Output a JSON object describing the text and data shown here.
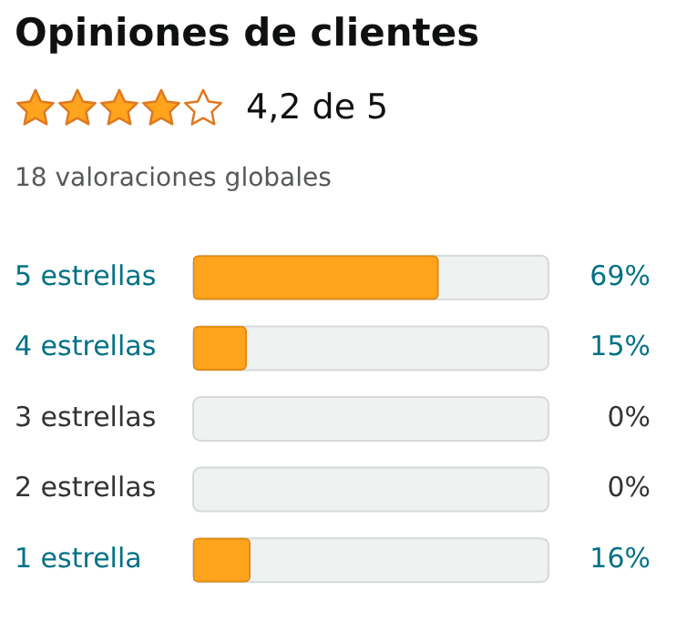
{
  "chart_data": {
    "type": "bar",
    "orientation": "horizontal",
    "title": "Opiniones de clientes",
    "subtitle": "18 valoraciones globales",
    "annotations": [
      "4,2 de 5"
    ],
    "categories": [
      "5 estrellas",
      "4 estrellas",
      "3 estrellas",
      "2 estrellas",
      "1 estrella"
    ],
    "values": [
      69,
      15,
      0,
      0,
      16
    ],
    "color": "#ffa41c",
    "xlim": [
      0,
      100
    ],
    "tick_labels": "y",
    "value_labels": [
      "69%",
      "15%",
      "0%",
      "0%",
      "16%"
    ]
  }
}
